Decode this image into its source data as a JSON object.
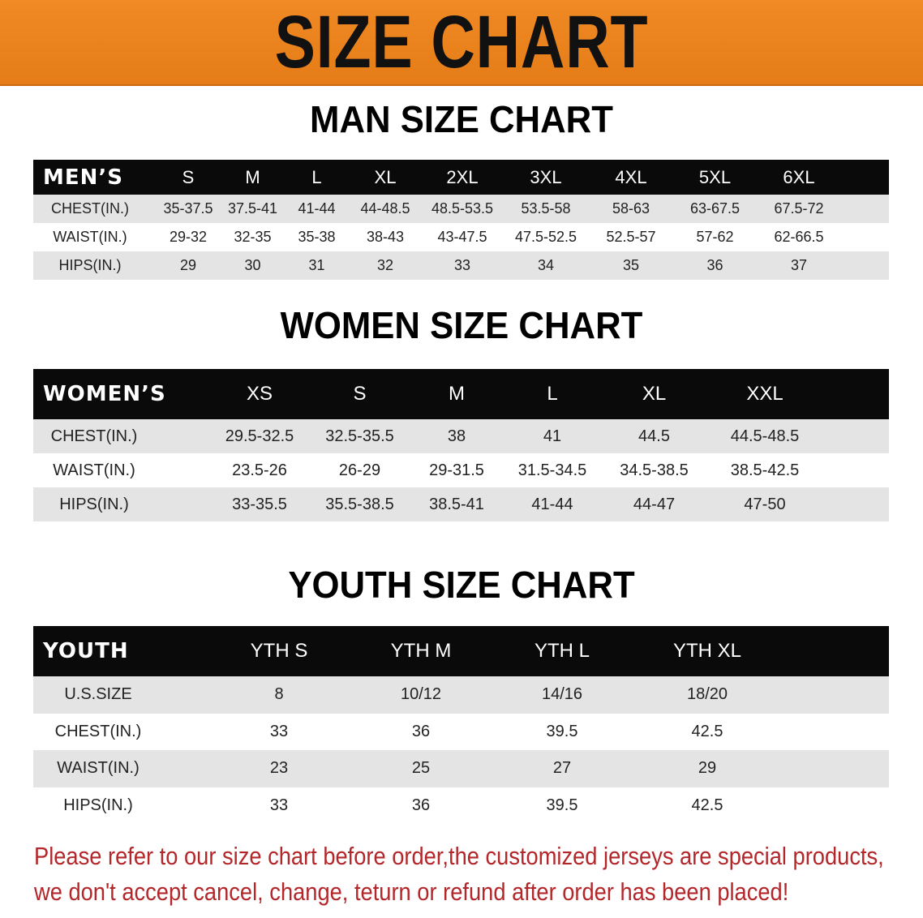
{
  "banner": {
    "title": "SIZE CHART",
    "color": "#ea8220"
  },
  "men": {
    "title": "MAN SIZE CHART",
    "header": [
      "MEN’S",
      "S",
      "M",
      "L",
      "XL",
      "2XL",
      "3XL",
      "4XL",
      "5XL",
      "6XL"
    ],
    "rows": [
      [
        "CHEST(IN.)",
        "35-37.5",
        "37.5-41",
        "41-44",
        "44-48.5",
        "48.5-53.5",
        "53.5-58",
        "58-63",
        "63-67.5",
        "67.5-72"
      ],
      [
        "WAIST(IN.)",
        "29-32",
        "32-35",
        "35-38",
        "38-43",
        "43-47.5",
        "47.5-52.5",
        "52.5-57",
        "57-62",
        "62-66.5"
      ],
      [
        "HIPS(IN.)",
        "29",
        "30",
        "31",
        "32",
        "33",
        "34",
        "35",
        "36",
        "37"
      ]
    ]
  },
  "women": {
    "title": "WOMEN SIZE CHART",
    "header": [
      "WOMEN’S",
      "XS",
      "S",
      "M",
      "L",
      "XL",
      "XXL"
    ],
    "rows": [
      [
        "CHEST(IN.)",
        "29.5-32.5",
        "32.5-35.5",
        "38",
        "41",
        "44.5",
        "44.5-48.5"
      ],
      [
        "WAIST(IN.)",
        "23.5-26",
        "26-29",
        "29-31.5",
        "31.5-34.5",
        "34.5-38.5",
        "38.5-42.5"
      ],
      [
        "HIPS(IN.)",
        "33-35.5",
        "35.5-38.5",
        "38.5-41",
        "41-44",
        "44-47",
        "47-50"
      ]
    ]
  },
  "youth": {
    "title": "YOUTH SIZE CHART",
    "header": [
      "YOUTH",
      "YTH S",
      "YTH M",
      "YTH L",
      "YTH XL"
    ],
    "rows": [
      [
        "U.S.SIZE",
        "8",
        "10/12",
        "14/16",
        "18/20"
      ],
      [
        "CHEST(IN.)",
        "33",
        "36",
        "39.5",
        "42.5"
      ],
      [
        "WAIST(IN.)",
        "23",
        "25",
        "27",
        "29"
      ],
      [
        "HIPS(IN.)",
        "33",
        "36",
        "39.5",
        "42.5"
      ]
    ]
  },
  "note": {
    "line1": "Please refer to our size chart before order,the customized jerseys are special products,",
    "line2": "we don't accept cancel, change, teturn or refund after order has been placed!",
    "color": "#b3262a"
  }
}
